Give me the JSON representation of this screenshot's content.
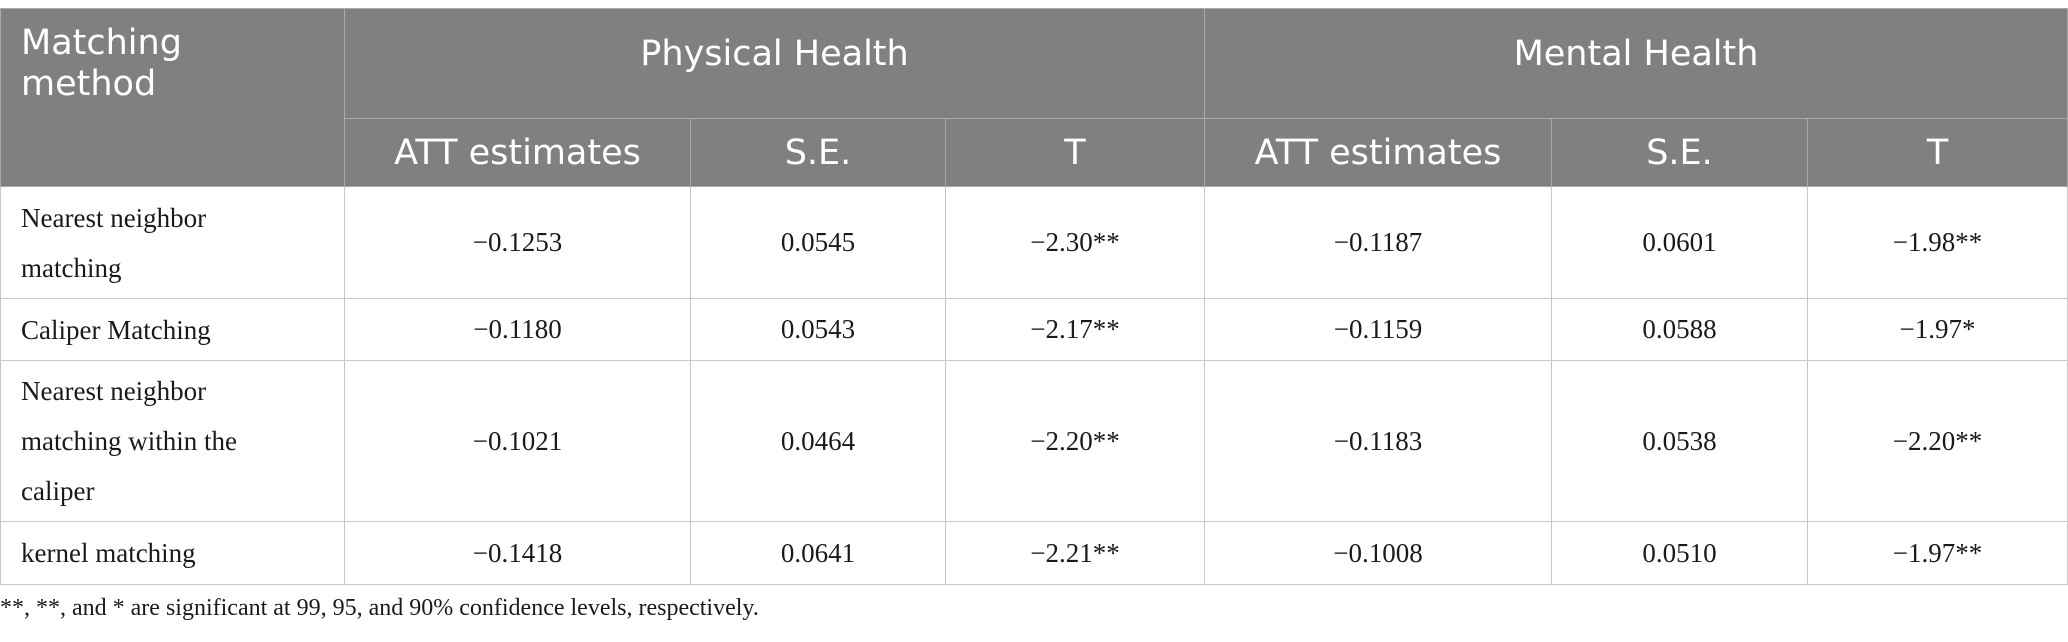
{
  "header": {
    "method": "Matching method",
    "groups": [
      "Physical Health",
      "Mental Health"
    ],
    "subcolumns": [
      "ATT estimates",
      "S.E.",
      "T",
      "ATT estimates",
      "S.E.",
      "T"
    ]
  },
  "rows": [
    {
      "method": "Nearest neighbor matching",
      "values": [
        "−0.1253",
        "0.0545",
        "−2.30**",
        "−0.1187",
        "0.0601",
        "−1.98**"
      ]
    },
    {
      "method": "Caliper Matching",
      "values": [
        "−0.1180",
        "0.0543",
        "−2.17**",
        "−0.1159",
        "0.0588",
        "−1.97*"
      ]
    },
    {
      "method": "Nearest neighbor matching within the caliper",
      "values": [
        "−0.1021",
        "0.0464",
        "−2.20**",
        "−0.1183",
        "0.0538",
        "−2.20**"
      ]
    },
    {
      "method": "kernel matching",
      "values": [
        "−0.1418",
        "0.0641",
        "−2.21**",
        "−0.1008",
        "0.0510",
        "−1.97**"
      ]
    }
  ],
  "footnote": "**, **, and * are significant at 99, 95, and 90% confidence levels, respectively.",
  "colors": {
    "header_bg": "#7f807f",
    "header_text": "#ffffff",
    "border": "#c8c8c8"
  }
}
